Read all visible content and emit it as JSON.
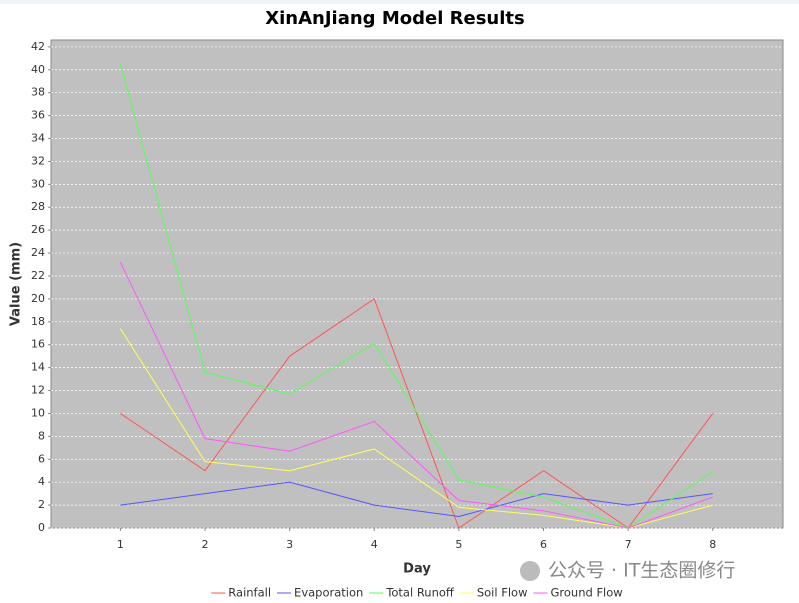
{
  "chart_data": {
    "type": "line",
    "title": "XinAnJiang Model Results",
    "x_label": "Day",
    "y_label": "Value (mm)",
    "x": [
      1,
      2,
      3,
      4,
      5,
      6,
      7,
      8
    ],
    "series": [
      {
        "name": "Rainfall",
        "color": "#ff5555",
        "values": [
          10,
          5,
          15,
          20,
          0,
          5,
          0,
          10
        ]
      },
      {
        "name": "Evaporation",
        "color": "#5555ff",
        "values": [
          2,
          3,
          4,
          2,
          1,
          3,
          2,
          3
        ]
      },
      {
        "name": "Total Runoff",
        "color": "#55ff55",
        "values": [
          40.5,
          13.6,
          11.7,
          16.1,
          4.2,
          2.7,
          0,
          4.9
        ]
      },
      {
        "name": "Soil Flow",
        "color": "#ffff55",
        "values": [
          17.4,
          5.8,
          5.0,
          6.9,
          1.8,
          1.1,
          0,
          2.0
        ]
      },
      {
        "name": "Ground Flow",
        "color": "#ff55ff",
        "values": [
          23.2,
          7.8,
          6.7,
          9.3,
          2.4,
          1.5,
          0,
          2.7
        ]
      }
    ],
    "xlim": [
      0.18,
      8.83
    ],
    "xticks": [
      1,
      2,
      3,
      4,
      5,
      6,
      7,
      8
    ],
    "ylim": [
      0,
      42.6
    ],
    "yticks": [
      0,
      2,
      4,
      6,
      8,
      10,
      12,
      14,
      16,
      18,
      20,
      22,
      24,
      26,
      28,
      30,
      32,
      34,
      36,
      38,
      40,
      42
    ],
    "grid": true,
    "legend": "bottom",
    "plot_background": "#c0c0c0",
    "watermark": "公众号 · IT生态圈修行"
  }
}
